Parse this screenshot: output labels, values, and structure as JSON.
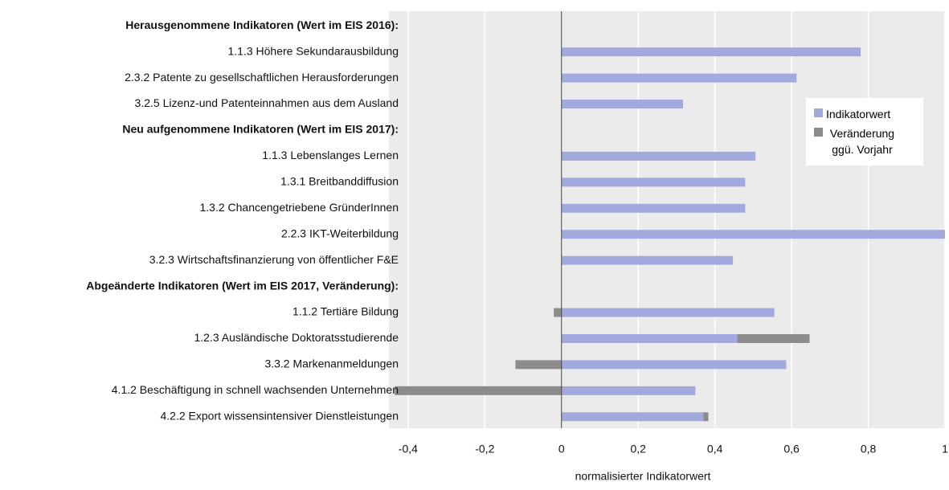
{
  "chart_data": {
    "type": "bar",
    "orientation": "horizontal",
    "stacked": true,
    "x_label": "normalisierter Indikatorwert",
    "categories": [
      "Herausgenommene Indikatoren (Wert im EIS 2016):",
      "1.1.3 Höhere Sekundarausbildung",
      "2.3.2 Patente zu gesellschaftlichen Herausforderungen",
      "3.2.5 Lizenz-und Patenteinnahmen aus dem Ausland",
      "Neu aufgenommene Indikatoren (Wert im EIS 2017):",
      "1.1.3 Lebenslanges Lernen",
      "1.3.1 Breitbanddiffusion",
      "1.3.2 Chancengetriebene GründerInnen",
      "2.2.3 IKT-Weiterbildung",
      "3.2.3 Wirtschaftsfinanzierung von öffentlicher F&E",
      "Abgeänderte Indikatoren (Wert im EIS 2017, Veränderung):",
      "1.1.2 Tertiäre Bildung",
      "1.2.3 Ausländische Doktoratsstudierende",
      "3.3.2 Markenanmeldungen",
      "4.1.2 Beschäftigung in schnell wachsenden Unternehmen",
      "4.2.2 Export wissensintensiver Dienstleistungen"
    ],
    "series": [
      {
        "name": "Indikatorwert",
        "color": "#a2a9dc",
        "values": [
          null,
          0.78,
          0.613,
          0.317,
          null,
          0.506,
          0.479,
          0.479,
          1.0,
          0.447,
          null,
          0.555,
          0.458,
          0.586,
          0.349,
          0.37
        ]
      },
      {
        "name": "Veränderung ggü. Vorjahr",
        "color": "#8c8c8c",
        "values": [
          null,
          null,
          null,
          null,
          null,
          null,
          null,
          null,
          null,
          null,
          null,
          -0.02,
          0.189,
          -0.12,
          -0.435,
          0.013
        ]
      }
    ],
    "xlim": [
      -0.45,
      1
    ],
    "xticks": [
      {
        "value": -0.4,
        "label": "-0,4"
      },
      {
        "value": -0.2,
        "label": "-0,2"
      },
      0,
      {
        "value": 0.2,
        "label": "0,2"
      },
      {
        "value": 0.4,
        "label": "0,4"
      },
      {
        "value": 0.6,
        "label": "0,6"
      },
      {
        "value": 0.8,
        "label": "0,8"
      },
      1
    ],
    "grid": true,
    "legend": "right"
  }
}
